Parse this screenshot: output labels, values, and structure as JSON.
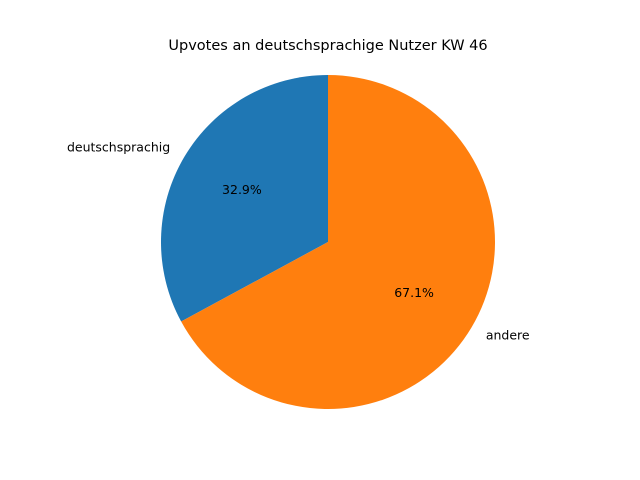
{
  "chart_data": {
    "type": "pie",
    "title": "Upvotes an deutschsprachige Nutzer KW 46",
    "start_angle_deg": 90,
    "direction": "counterclockwise",
    "slices": [
      {
        "label": "deutschsprachig",
        "value": 32.9,
        "pct_label": "32.9%",
        "color": "#1f77b4"
      },
      {
        "label": "andere",
        "value": 67.1,
        "pct_label": "67.1%",
        "color": "#ff7f0e"
      }
    ]
  }
}
